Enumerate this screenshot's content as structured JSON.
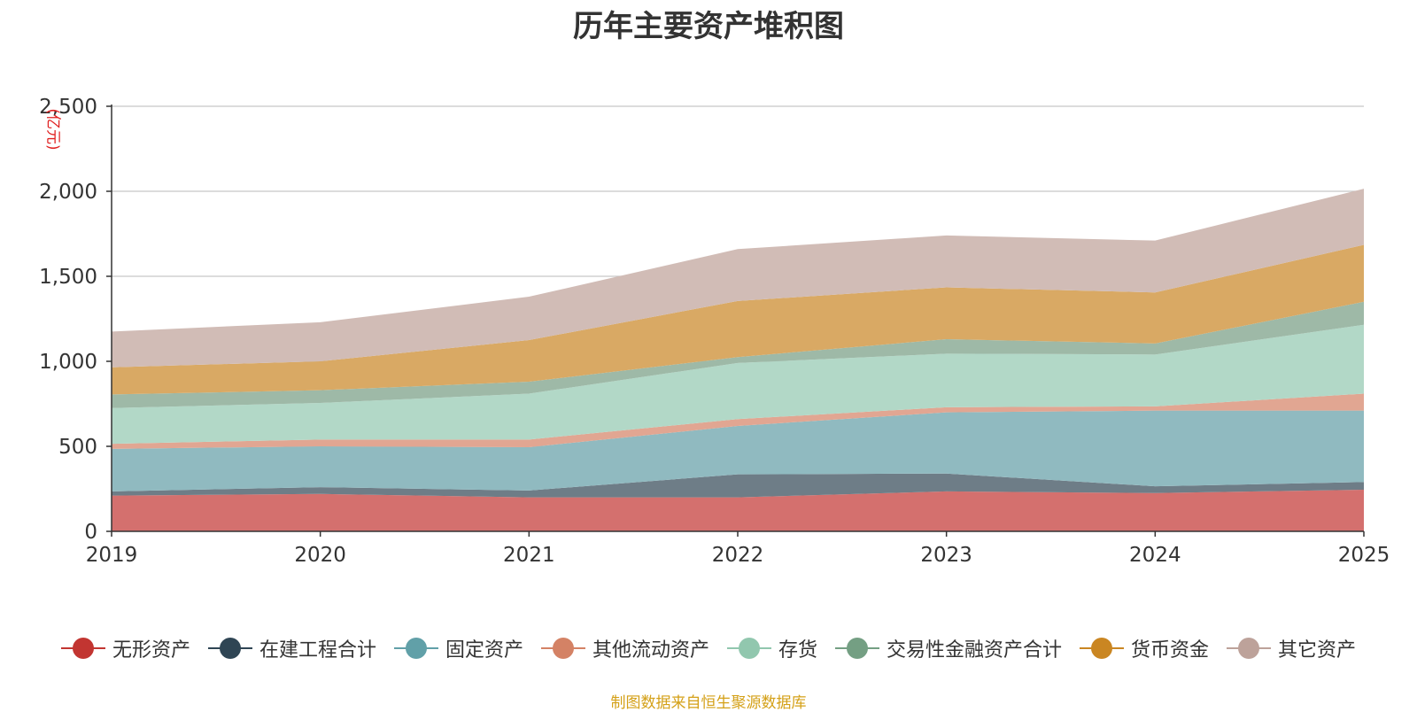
{
  "chart_data": {
    "type": "area",
    "stacked": true,
    "title": "历年主要资产堆积图",
    "unit_label": "(亿元)",
    "x": [
      "2019",
      "2020",
      "2021",
      "2022",
      "2023",
      "2024",
      "2025"
    ],
    "ylim": [
      0,
      2500
    ],
    "yticks": [
      0,
      500,
      1000,
      1500,
      2000,
      2500
    ],
    "ytick_labels": [
      "0",
      "500",
      "1,000",
      "1,500",
      "2,000",
      "2,500"
    ],
    "series": [
      {
        "name": "无形资产",
        "color": "#c23531",
        "fill": "#d4706e",
        "values": [
          210,
          220,
          200,
          200,
          235,
          225,
          245
        ]
      },
      {
        "name": "在建工程合计",
        "color": "#2f4554",
        "fill": "#6e7d87",
        "values": [
          25,
          40,
          40,
          135,
          105,
          40,
          45
        ]
      },
      {
        "name": "固定资产",
        "color": "#61a0a8",
        "fill": "#90bac0",
        "values": [
          250,
          240,
          255,
          285,
          360,
          445,
          420
        ]
      },
      {
        "name": "其他流动资产",
        "color": "#d48265",
        "fill": "#e1a692",
        "values": [
          30,
          40,
          45,
          40,
          30,
          25,
          100
        ]
      },
      {
        "name": "存货",
        "color": "#91c7ae",
        "fill": "#b2d8c7",
        "values": [
          210,
          215,
          270,
          330,
          315,
          305,
          405
        ]
      },
      {
        "name": "交易性金融资产合计",
        "color": "#749f83",
        "fill": "#9eb9a7",
        "values": [
          80,
          75,
          70,
          35,
          85,
          65,
          135
        ]
      },
      {
        "name": "货币资金",
        "color": "#ca8622",
        "fill": "#d9a964",
        "values": [
          160,
          170,
          245,
          330,
          305,
          300,
          335
        ]
      },
      {
        "name": "其它资产",
        "color": "#bda29a",
        "fill": "#d1bcb6",
        "values": [
          210,
          230,
          255,
          305,
          305,
          305,
          330
        ]
      }
    ]
  },
  "footer": {
    "source": "制图数据来自恒生聚源数据库"
  }
}
